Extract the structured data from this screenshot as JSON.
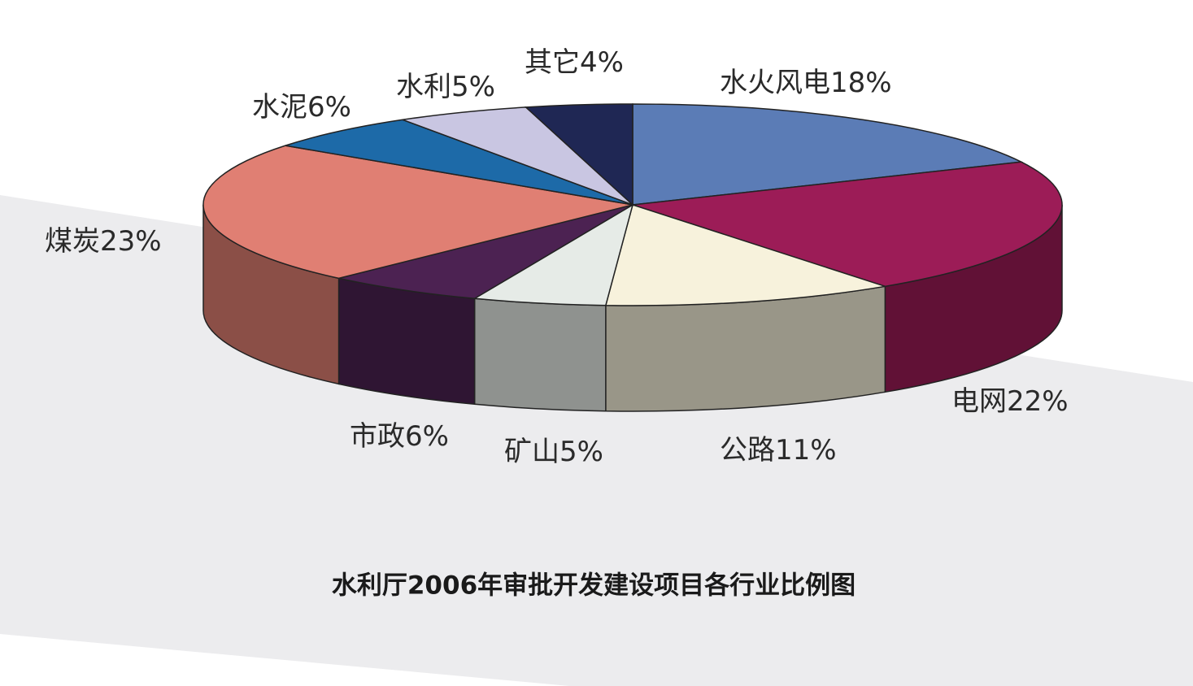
{
  "chart_data": {
    "type": "pie3d",
    "title": "水利厅2006年审批开发建设项目各行业比例图",
    "categories": [
      "水火风电",
      "电网",
      "公路",
      "矿山",
      "市政",
      "煤炭",
      "水泥",
      "水利",
      "其它"
    ],
    "values": [
      18,
      22,
      11,
      5,
      6,
      23,
      6,
      5,
      4
    ],
    "value_labels": [
      "18%",
      "22%",
      "11%",
      "5%",
      "6%",
      "23%",
      "6%",
      "5%",
      "4%"
    ],
    "colors": [
      "#5b7cb6",
      "#9c1c57",
      "#f7f2dc",
      "#e6ebe7",
      "#4c2252",
      "#e07f73",
      "#1d6aa8",
      "#c9c6e2",
      "#1f2754"
    ]
  }
}
